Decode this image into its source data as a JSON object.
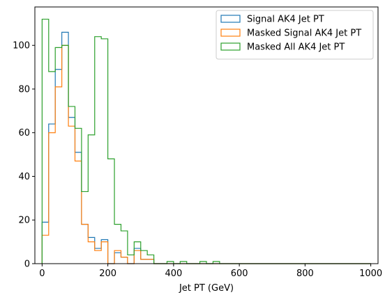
{
  "chart_data": {
    "type": "histogram",
    "xlabel": "Jet PT (GeV)",
    "ylabel": "",
    "title": "",
    "xlim": [
      -22,
      1022
    ],
    "ylim": [
      0,
      117.6
    ],
    "xticks": [
      0,
      200,
      400,
      600,
      800,
      1000
    ],
    "yticks": [
      0,
      20,
      40,
      60,
      80,
      100
    ],
    "grid": false,
    "legend_position": "top-right",
    "bin_edges": [
      0,
      20,
      40,
      60,
      80,
      100,
      120,
      140,
      160,
      180,
      200,
      220,
      240,
      260,
      280,
      300,
      320,
      340,
      360,
      380,
      400,
      420,
      440,
      460,
      480,
      500,
      520,
      540,
      560,
      580,
      600,
      620,
      640,
      660,
      680,
      700,
      720,
      740,
      760,
      780,
      800,
      820,
      840,
      860,
      880,
      900,
      920,
      940,
      960,
      980,
      1000
    ],
    "series": [
      {
        "name": "Signal AK4 Jet PT",
        "color": "#1f77b4",
        "values": [
          19,
          64,
          89,
          106,
          67,
          51,
          18,
          12,
          7,
          11,
          0,
          5,
          3,
          0,
          7,
          2,
          2,
          0,
          0,
          0,
          0,
          0,
          0,
          0,
          0,
          0,
          0,
          0,
          0,
          0,
          0,
          0,
          0,
          0,
          0,
          0,
          0,
          0,
          0,
          0,
          0,
          0,
          0,
          0,
          0,
          0,
          0,
          0,
          0,
          0
        ]
      },
      {
        "name": "Masked Signal AK4 Jet PT",
        "color": "#ff7f0e",
        "values": [
          13,
          60,
          81,
          100,
          63,
          47,
          18,
          10,
          6,
          10,
          0,
          6,
          3,
          0,
          6,
          2,
          2,
          0,
          0,
          0,
          0,
          0,
          0,
          0,
          0,
          0,
          0,
          0,
          0,
          0,
          0,
          0,
          0,
          0,
          0,
          0,
          0,
          0,
          0,
          0,
          0,
          0,
          0,
          0,
          0,
          0,
          0,
          0,
          0,
          0
        ]
      },
      {
        "name": "Masked All AK4 Jet PT",
        "color": "#2ca02c",
        "values": [
          112,
          88,
          99,
          100,
          72,
          62,
          33,
          59,
          104,
          103,
          48,
          18,
          15,
          4,
          10,
          6,
          4,
          0,
          0,
          1,
          0,
          1,
          0,
          0,
          1,
          0,
          1,
          0,
          0,
          0,
          0,
          0,
          0,
          0,
          0,
          0,
          0,
          0,
          0,
          0,
          0,
          0,
          0,
          0,
          0,
          0,
          0,
          0,
          0,
          0
        ]
      }
    ]
  }
}
